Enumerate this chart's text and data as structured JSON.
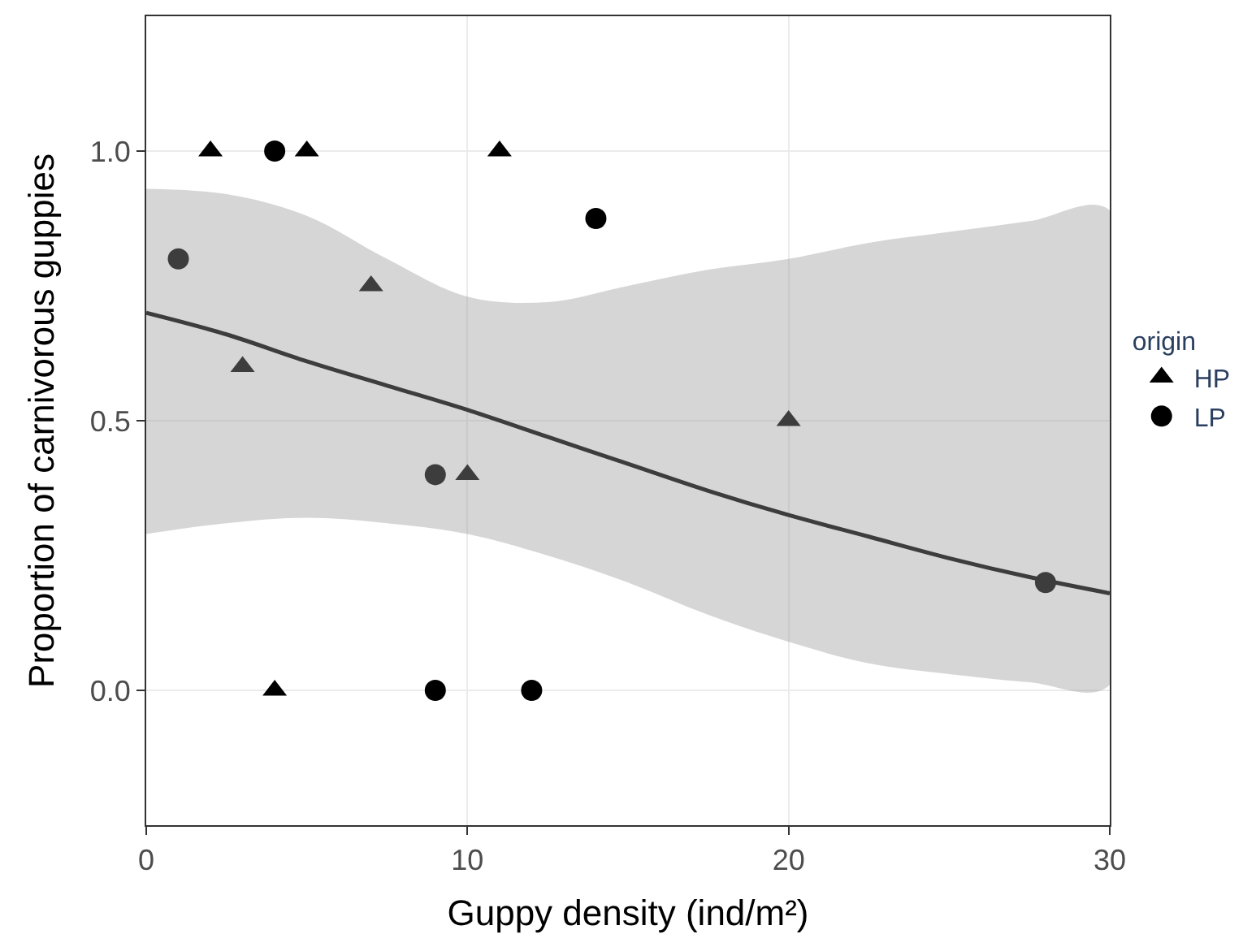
{
  "chart_data": {
    "type": "scatter",
    "xlabel": "Guppy density (ind/m²)",
    "ylabel": "Proportion of carnivorous guppies",
    "legend_title": "origin",
    "xlim": [
      0,
      30
    ],
    "xticks": [
      0,
      10,
      20,
      30
    ],
    "ylim": [
      -0.25,
      1.25
    ],
    "yticks": [
      {
        "value": 0,
        "label": "0.0"
      },
      {
        "value": 0.5,
        "label": "0.5"
      },
      {
        "value": 1,
        "label": "1.0"
      }
    ],
    "grid": true,
    "legend": "right",
    "series": [
      {
        "name": "HP",
        "color": "#000000",
        "marker": "triangle",
        "x": [
          2,
          5,
          11,
          7,
          3,
          10,
          20,
          4
        ],
        "values": [
          1.0,
          1.0,
          1.0,
          0.75,
          0.6,
          0.4,
          0.5,
          0.0
        ]
      },
      {
        "name": "LP",
        "color": "#000000",
        "marker": "circle",
        "x": [
          1,
          4,
          14,
          9,
          28,
          9,
          12
        ],
        "values": [
          0.8,
          1.0,
          0.875,
          0.4,
          0.2,
          0.0,
          0.0
        ]
      },
      {
        "type": "line",
        "color": "#000000",
        "marker": "none",
        "x": [
          0,
          2.5,
          5,
          7.5,
          10,
          12.5,
          15,
          17.5,
          20,
          22.5,
          25,
          27.5,
          30
        ],
        "values": [
          0.7,
          0.66,
          0.61,
          0.565,
          0.52,
          0.47,
          0.42,
          0.37,
          0.325,
          0.285,
          0.245,
          0.21,
          0.18
        ],
        "lower": [
          0.29,
          0.31,
          0.32,
          0.31,
          0.29,
          0.25,
          0.2,
          0.14,
          0.09,
          0.05,
          0.03,
          0.015,
          0.01
        ],
        "upper": [
          0.93,
          0.92,
          0.88,
          0.8,
          0.73,
          0.72,
          0.75,
          0.78,
          0.8,
          0.83,
          0.85,
          0.87,
          0.89
        ]
      }
    ]
  }
}
